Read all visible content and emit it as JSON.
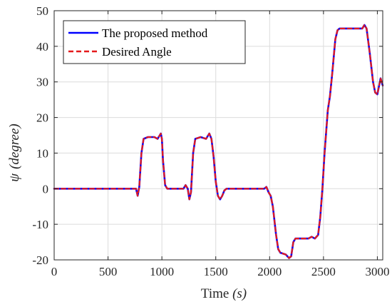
{
  "chart_data": {
    "type": "line",
    "xlabel_text": "Time ",
    "xlabel_unit": "(s)",
    "ylabel_symbol": "ψ",
    "ylabel_unit": "(degree)",
    "xlim": [
      0,
      3050
    ],
    "ylim": [
      -20,
      50
    ],
    "x_ticks": [
      0,
      500,
      1000,
      1500,
      2000,
      2500,
      3000
    ],
    "y_ticks": [
      -20,
      -10,
      0,
      10,
      20,
      30,
      40,
      50
    ],
    "grid": true,
    "legend_position": "top-left",
    "series": [
      {
        "name": "The proposed method",
        "color": "#0000ff",
        "style": "solid",
        "points": [
          [
            0,
            0
          ],
          [
            760,
            0
          ],
          [
            775,
            -2
          ],
          [
            790,
            0.5
          ],
          [
            810,
            10
          ],
          [
            830,
            14
          ],
          [
            870,
            14.5
          ],
          [
            930,
            14.5
          ],
          [
            960,
            14
          ],
          [
            990,
            15.5
          ],
          [
            1000,
            14
          ],
          [
            1010,
            8
          ],
          [
            1030,
            1
          ],
          [
            1050,
            0
          ],
          [
            1200,
            0
          ],
          [
            1220,
            1
          ],
          [
            1240,
            0
          ],
          [
            1255,
            -3
          ],
          [
            1270,
            -1
          ],
          [
            1290,
            10
          ],
          [
            1310,
            14
          ],
          [
            1360,
            14.5
          ],
          [
            1410,
            14
          ],
          [
            1440,
            15.5
          ],
          [
            1460,
            14
          ],
          [
            1480,
            9
          ],
          [
            1500,
            2
          ],
          [
            1520,
            -2
          ],
          [
            1540,
            -3
          ],
          [
            1560,
            -2
          ],
          [
            1580,
            -0.5
          ],
          [
            1600,
            0
          ],
          [
            1950,
            0
          ],
          [
            1970,
            0.5
          ],
          [
            1990,
            -1
          ],
          [
            2010,
            -2
          ],
          [
            2030,
            -5
          ],
          [
            2060,
            -13
          ],
          [
            2080,
            -17
          ],
          [
            2100,
            -18
          ],
          [
            2150,
            -18.5
          ],
          [
            2180,
            -19.5
          ],
          [
            2200,
            -19
          ],
          [
            2220,
            -15
          ],
          [
            2240,
            -14
          ],
          [
            2300,
            -14
          ],
          [
            2360,
            -14
          ],
          [
            2390,
            -13.5
          ],
          [
            2420,
            -14
          ],
          [
            2450,
            -13
          ],
          [
            2470,
            -8
          ],
          [
            2490,
            0
          ],
          [
            2510,
            10
          ],
          [
            2540,
            22
          ],
          [
            2560,
            26
          ],
          [
            2580,
            32
          ],
          [
            2610,
            42
          ],
          [
            2630,
            44.5
          ],
          [
            2650,
            45
          ],
          [
            2750,
            45
          ],
          [
            2820,
            45
          ],
          [
            2860,
            45
          ],
          [
            2880,
            46
          ],
          [
            2900,
            45
          ],
          [
            2930,
            38
          ],
          [
            2960,
            30
          ],
          [
            2980,
            27
          ],
          [
            3000,
            26.5
          ],
          [
            3010,
            28
          ],
          [
            3030,
            31
          ],
          [
            3040,
            30
          ],
          [
            3050,
            29
          ]
        ]
      },
      {
        "name": "Desired Angle",
        "color": "#e41a1c",
        "style": "dashed",
        "points": [
          [
            0,
            0
          ],
          [
            760,
            0
          ],
          [
            775,
            -2
          ],
          [
            790,
            0.5
          ],
          [
            810,
            10
          ],
          [
            830,
            14
          ],
          [
            870,
            14.5
          ],
          [
            930,
            14.5
          ],
          [
            960,
            14
          ],
          [
            990,
            15.5
          ],
          [
            1000,
            14
          ],
          [
            1010,
            8
          ],
          [
            1030,
            1
          ],
          [
            1050,
            0
          ],
          [
            1200,
            0
          ],
          [
            1220,
            1
          ],
          [
            1240,
            0
          ],
          [
            1255,
            -3
          ],
          [
            1270,
            -1
          ],
          [
            1290,
            10
          ],
          [
            1310,
            14
          ],
          [
            1360,
            14.5
          ],
          [
            1410,
            14
          ],
          [
            1440,
            15.5
          ],
          [
            1460,
            14
          ],
          [
            1480,
            9
          ],
          [
            1500,
            2
          ],
          [
            1520,
            -2
          ],
          [
            1540,
            -3
          ],
          [
            1560,
            -2
          ],
          [
            1580,
            -0.5
          ],
          [
            1600,
            0
          ],
          [
            1950,
            0
          ],
          [
            1970,
            0.5
          ],
          [
            1990,
            -1
          ],
          [
            2010,
            -2
          ],
          [
            2030,
            -5
          ],
          [
            2060,
            -13
          ],
          [
            2080,
            -17
          ],
          [
            2100,
            -18
          ],
          [
            2150,
            -18.5
          ],
          [
            2180,
            -19.5
          ],
          [
            2200,
            -19
          ],
          [
            2220,
            -15
          ],
          [
            2240,
            -14
          ],
          [
            2300,
            -14
          ],
          [
            2360,
            -14
          ],
          [
            2390,
            -13.5
          ],
          [
            2420,
            -14
          ],
          [
            2450,
            -13
          ],
          [
            2470,
            -8
          ],
          [
            2490,
            0
          ],
          [
            2510,
            10
          ],
          [
            2540,
            22
          ],
          [
            2560,
            26
          ],
          [
            2580,
            32
          ],
          [
            2610,
            42
          ],
          [
            2630,
            44.5
          ],
          [
            2650,
            45
          ],
          [
            2750,
            45
          ],
          [
            2820,
            45
          ],
          [
            2860,
            45
          ],
          [
            2880,
            46
          ],
          [
            2900,
            45
          ],
          [
            2930,
            38
          ],
          [
            2960,
            30
          ],
          [
            2980,
            27
          ],
          [
            3000,
            26.5
          ],
          [
            3010,
            28
          ],
          [
            3030,
            31
          ],
          [
            3040,
            30
          ],
          [
            3050,
            29
          ]
        ]
      }
    ]
  }
}
